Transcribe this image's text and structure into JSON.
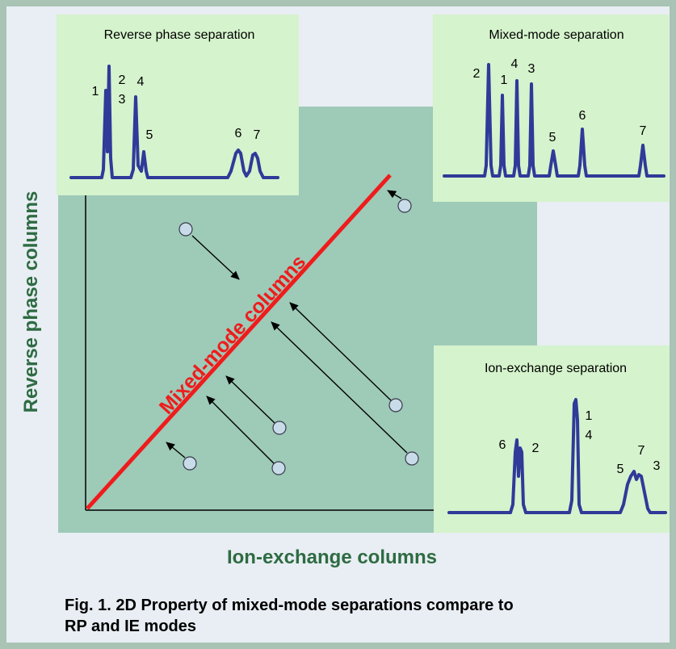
{
  "colors": {
    "frame": "#a9c3b4",
    "background": "#e8eef3",
    "plot_area": "#9ecab8",
    "inset_panel": "#d5f3cc",
    "peak": "#2f3a99",
    "diagonal": "#ee1c1c",
    "axis_title": "#2e6b42"
  },
  "diagonal_label": "Mixed-mode columns",
  "y_axis_title": "Reverse phase columns",
  "x_axis_title": "Ion-exchange columns",
  "caption_line1": "Fig. 1. 2D Property of mixed-mode separations compare to",
  "caption_line2": "RP and IE modes",
  "insets": {
    "reverse_phase": {
      "title": "Reverse phase separation",
      "labels": [
        "1",
        "2",
        "3",
        "4",
        "5",
        "6",
        "7"
      ]
    },
    "mixed_mode": {
      "title": "Mixed-mode separation",
      "labels": [
        "2",
        "1",
        "4",
        "3",
        "5",
        "6",
        "7"
      ]
    },
    "ion_exchange": {
      "title": "Ion-exchange separation",
      "labels": [
        "6",
        "2",
        "1",
        "4",
        "5",
        "7",
        "3"
      ]
    }
  }
}
